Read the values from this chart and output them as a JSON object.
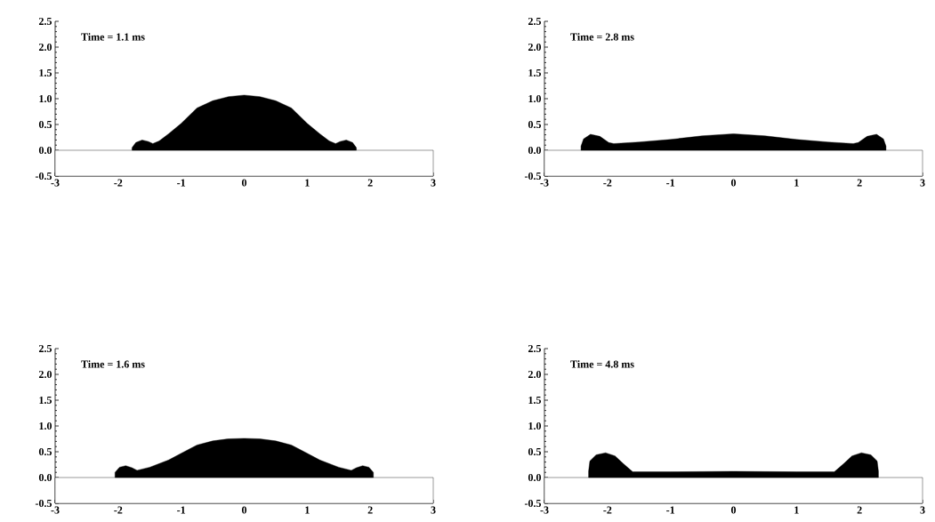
{
  "chart_data": [
    {
      "type": "area",
      "title": "Time = 1.1 ms",
      "x": [
        -1.78,
        -1.72,
        -1.62,
        -1.52,
        -1.45,
        -1.35,
        -1.2,
        -1.0,
        -0.75,
        -0.5,
        -0.25,
        0,
        0.25,
        0.5,
        0.75,
        1.0,
        1.2,
        1.35,
        1.45,
        1.52,
        1.62,
        1.72,
        1.78
      ],
      "series": [
        {
          "color": "#000000",
          "values": [
            0.05,
            0.15,
            0.2,
            0.17,
            0.13,
            0.18,
            0.32,
            0.52,
            0.82,
            0.96,
            1.04,
            1.07,
            1.04,
            0.96,
            0.82,
            0.52,
            0.32,
            0.18,
            0.13,
            0.17,
            0.2,
            0.15,
            0.05
          ]
        }
      ],
      "xlim": [
        -3,
        3
      ],
      "ylim": [
        -0.5,
        2.5
      ],
      "xticks": [
        -3,
        -2,
        -1,
        0,
        1,
        2,
        3
      ],
      "yticks": [
        {
          "value": -0.5,
          "label": "-0.5"
        },
        {
          "value": 0,
          "label": "0.0"
        },
        {
          "value": 0.5,
          "label": "0.5"
        },
        {
          "value": 1,
          "label": "1.0"
        },
        {
          "value": 1.5,
          "label": "1.5"
        },
        {
          "value": 2,
          "label": "2.0"
        },
        {
          "value": 2.5,
          "label": "2.5"
        }
      ],
      "bands": [
        {
          "axis": "y",
          "from": -0.5,
          "to": 0,
          "color": "#ffffff"
        }
      ]
    },
    {
      "type": "area",
      "title": "Time = 2.8 ms",
      "x": [
        -2.42,
        -2.38,
        -2.27,
        -2.12,
        -1.98,
        -1.9,
        -1.5,
        -1.0,
        -0.5,
        0,
        0.5,
        1.0,
        1.5,
        1.9,
        1.98,
        2.12,
        2.27,
        2.38,
        2.42
      ],
      "series": [
        {
          "color": "#000000",
          "values": [
            0.08,
            0.22,
            0.31,
            0.27,
            0.15,
            0.13,
            0.16,
            0.21,
            0.28,
            0.32,
            0.28,
            0.21,
            0.16,
            0.13,
            0.15,
            0.27,
            0.31,
            0.22,
            0.08
          ]
        }
      ],
      "xlim": [
        -3,
        3
      ],
      "ylim": [
        -0.5,
        2.5
      ],
      "xticks": [
        -3,
        -2,
        -1,
        0,
        1,
        2,
        3
      ],
      "yticks": [
        {
          "value": -0.5,
          "label": "-0.5"
        },
        {
          "value": 0,
          "label": "0.0"
        },
        {
          "value": 0.5,
          "label": "0.5"
        },
        {
          "value": 1,
          "label": "1.0"
        },
        {
          "value": 1.5,
          "label": "1.5"
        },
        {
          "value": 2,
          "label": "2.0"
        },
        {
          "value": 2.5,
          "label": "2.5"
        }
      ],
      "bands": [
        {
          "axis": "y",
          "from": -0.5,
          "to": 0,
          "color": "#ffffff"
        }
      ]
    },
    {
      "type": "area",
      "title": "Time = 1.6 ms",
      "x": [
        -2.05,
        -1.98,
        -1.88,
        -1.78,
        -1.7,
        -1.5,
        -1.2,
        -1.0,
        -0.75,
        -0.5,
        -0.25,
        0,
        0.25,
        0.5,
        0.75,
        1.0,
        1.2,
        1.5,
        1.7,
        1.78,
        1.88,
        1.98,
        2.05
      ],
      "series": [
        {
          "color": "#000000",
          "values": [
            0.1,
            0.2,
            0.23,
            0.19,
            0.14,
            0.2,
            0.34,
            0.47,
            0.63,
            0.71,
            0.75,
            0.76,
            0.75,
            0.71,
            0.63,
            0.47,
            0.34,
            0.2,
            0.14,
            0.19,
            0.23,
            0.2,
            0.1
          ]
        }
      ],
      "xlim": [
        -3,
        3
      ],
      "ylim": [
        -0.5,
        2.5
      ],
      "xticks": [
        -3,
        -2,
        -1,
        0,
        1,
        2,
        3
      ],
      "yticks": [
        {
          "value": -0.5,
          "label": "-0.5"
        },
        {
          "value": 0,
          "label": "0.0"
        },
        {
          "value": 0.5,
          "label": "0.5"
        },
        {
          "value": 1,
          "label": "1.0"
        },
        {
          "value": 1.5,
          "label": "1.5"
        },
        {
          "value": 2,
          "label": "2.0"
        },
        {
          "value": 2.5,
          "label": "2.5"
        }
      ],
      "bands": [
        {
          "axis": "y",
          "from": -0.5,
          "to": 0,
          "color": "#ffffff"
        }
      ]
    },
    {
      "type": "area",
      "title": "Time = 4.8 ms",
      "x": [
        -2.3,
        -2.28,
        -2.18,
        -2.03,
        -1.88,
        -1.75,
        -1.6,
        -1.0,
        0,
        1.0,
        1.6,
        1.75,
        1.88,
        2.03,
        2.18,
        2.28,
        2.3
      ],
      "series": [
        {
          "color": "#000000",
          "values": [
            0.12,
            0.32,
            0.44,
            0.48,
            0.42,
            0.27,
            0.11,
            0.11,
            0.12,
            0.11,
            0.11,
            0.27,
            0.42,
            0.48,
            0.44,
            0.32,
            0.12
          ]
        }
      ],
      "xlim": [
        -3,
        3
      ],
      "ylim": [
        -0.5,
        2.5
      ],
      "xticks": [
        -3,
        -2,
        -1,
        0,
        1,
        2,
        3
      ],
      "yticks": [
        {
          "value": -0.5,
          "label": "-0.5"
        },
        {
          "value": 0,
          "label": "0.0"
        },
        {
          "value": 0.5,
          "label": "0.5"
        },
        {
          "value": 1,
          "label": "1.0"
        },
        {
          "value": 1.5,
          "label": "1.5"
        },
        {
          "value": 2,
          "label": "2.0"
        },
        {
          "value": 2.5,
          "label": "2.5"
        }
      ],
      "bands": [
        {
          "axis": "y",
          "from": -0.5,
          "to": 0,
          "color": "#ffffff"
        }
      ]
    }
  ]
}
